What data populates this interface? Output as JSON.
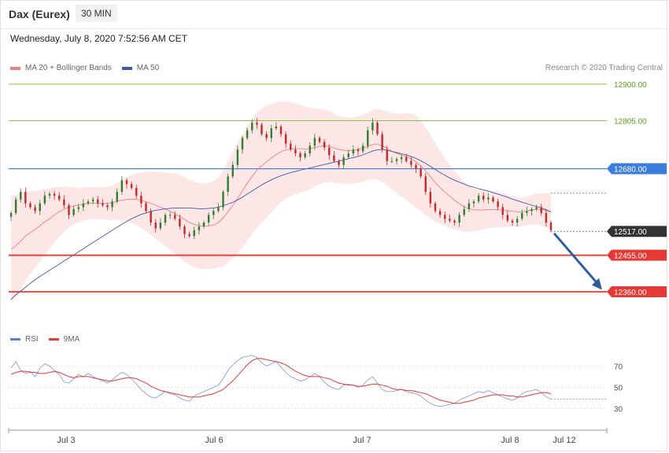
{
  "header": {
    "title": "Dax (Eurex)",
    "timeframe": "30 MIN",
    "datetime": "Wednesday, July 8, 2020 7:52:56 AM CET"
  },
  "legend": {
    "ma20_label": "MA 20 + Bollinger Bands",
    "ma50_label": "MA 50",
    "credit": "Research © 2020 Trading Central"
  },
  "rsi_legend": {
    "rsi_label": "RSI",
    "ma_label": "9MA"
  },
  "colors": {
    "ma20": "#f08080",
    "bands_fill": "#fde2e2",
    "ma50": "#3f5aa8",
    "candle_up": "#2e7d32",
    "candle_down": "#c62828",
    "resistance": "#8bc34a",
    "pivot": "#3b7ddd",
    "support": "#e53935",
    "current": "#333333",
    "rsi": "#7b96d6",
    "rsi_ma": "#e53935",
    "arrow": "#2d5f9e"
  },
  "chart_data": {
    "type": "candlestick",
    "xlabels": [
      "Jul 3",
      "Jul 6",
      "Jul 7",
      "Jul 8",
      "Jul 12"
    ],
    "ylim": [
      12330,
      12920
    ],
    "levels": [
      {
        "label": "12900.00",
        "value": 12900.0,
        "kind": "resistance"
      },
      {
        "label": "12805.00",
        "value": 12805.0,
        "kind": "resistance"
      },
      {
        "label": "12680.00",
        "value": 12680.0,
        "kind": "pivot"
      },
      {
        "label": "12517.00",
        "value": 12517.0,
        "kind": "current"
      },
      {
        "label": "12455.00",
        "value": 12455.0,
        "kind": "support"
      },
      {
        "label": "12360.00",
        "value": 12360.0,
        "kind": "support"
      }
    ],
    "rsi_ticks": [
      70,
      50,
      30
    ],
    "rsi_ylim": [
      15,
      85
    ],
    "close": [
      12565,
      12600,
      12620,
      12590,
      12580,
      12570,
      12590,
      12610,
      12615,
      12610,
      12600,
      12585,
      12560,
      12575,
      12580,
      12590,
      12595,
      12600,
      12590,
      12585,
      12580,
      12595,
      12620,
      12650,
      12640,
      12630,
      12610,
      12590,
      12570,
      12540,
      12525,
      12540,
      12560,
      12560,
      12550,
      12530,
      12510,
      12505,
      12520,
      12530,
      12540,
      12560,
      12570,
      12580,
      12620,
      12660,
      12690,
      12730,
      12760,
      12780,
      12800,
      12795,
      12770,
      12760,
      12785,
      12790,
      12770,
      12745,
      12730,
      12720,
      12710,
      12720,
      12740,
      12760,
      12750,
      12735,
      12715,
      12700,
      12690,
      12710,
      12720,
      12730,
      12725,
      12740,
      12780,
      12800,
      12770,
      12730,
      12700,
      12700,
      12705,
      12710,
      12700,
      12690,
      12680,
      12660,
      12620,
      12590,
      12570,
      12560,
      12550,
      12545,
      12540,
      12560,
      12575,
      12590,
      12595,
      12610,
      12600,
      12605,
      12595,
      12580,
      12560,
      12545,
      12540,
      12550,
      12565,
      12570,
      12575,
      12580,
      12565,
      12540,
      12520
    ],
    "ma20": [
      12470,
      12480,
      12492,
      12505,
      12514,
      12522,
      12532,
      12542,
      12550,
      12560,
      12568,
      12575,
      12580,
      12583,
      12585,
      12588,
      12590,
      12591,
      12590,
      12590,
      12590,
      12592,
      12595,
      12598,
      12600,
      12601,
      12600,
      12598,
      12594,
      12590,
      12585,
      12580,
      12575,
      12569,
      12563,
      12556,
      12548,
      12540,
      12535,
      12532,
      12530,
      12531,
      12534,
      12540,
      12552,
      12568,
      12585,
      12603,
      12622,
      12642,
      12660,
      12676,
      12688,
      12698,
      12708,
      12717,
      12724,
      12729,
      12731,
      12732,
      12732,
      12731,
      12732,
      12735,
      12738,
      12740,
      12738,
      12734,
      12730,
      12728,
      12727,
      12728,
      12730,
      12733,
      12738,
      12743,
      12744,
      12740,
      12733,
      12726,
      12720,
      12716,
      12712,
      12706,
      12698,
      12688,
      12674,
      12659,
      12644,
      12631,
      12619,
      12609,
      12598,
      12589,
      12581,
      12576,
      12573,
      12573,
      12573,
      12574,
      12574,
      12574,
      12572,
      12571,
      12569,
      12568,
      12568,
      12570,
      12573,
      12575,
      12574,
      12572,
      12568
    ],
    "bb_width": [
      140,
      132,
      124,
      116,
      108,
      100,
      93,
      86,
      79,
      72,
      65,
      59,
      53,
      48,
      45,
      43,
      42,
      42,
      42,
      42,
      43,
      45,
      48,
      52,
      57,
      62,
      67,
      72,
      77,
      82,
      87,
      92,
      96,
      100,
      104,
      108,
      110,
      111,
      111,
      111,
      111,
      112,
      114,
      118,
      125,
      132,
      138,
      143,
      147,
      149,
      150,
      150,
      148,
      145,
      141,
      136,
      131,
      126,
      122,
      118,
      114,
      110,
      106,
      102,
      98,
      95,
      92,
      90,
      88,
      87,
      86,
      86,
      86,
      87,
      88,
      90,
      92,
      94,
      96,
      99,
      103,
      108,
      113,
      118,
      120,
      118,
      114,
      109,
      102,
      95,
      88,
      82,
      76,
      70,
      65,
      60,
      56,
      53,
      51,
      49,
      48,
      46,
      44,
      42,
      40,
      38,
      37,
      37,
      38,
      40,
      42,
      44,
      46
    ],
    "ma50": [
      12340,
      12352,
      12362,
      12372,
      12382,
      12391,
      12400,
      12408,
      12416,
      12424,
      12432,
      12440,
      12448,
      12456,
      12464,
      12472,
      12480,
      12488,
      12496,
      12504,
      12512,
      12520,
      12528,
      12536,
      12543,
      12550,
      12556,
      12561,
      12565,
      12569,
      12572,
      12574,
      12576,
      12577,
      12578,
      12578,
      12578,
      12578,
      12577,
      12576,
      12576,
      12577,
      12578,
      12580,
      12584,
      12588,
      12593,
      12599,
      12606,
      12614,
      12622,
      12630,
      12638,
      12645,
      12651,
      12657,
      12662,
      12666,
      12670,
      12673,
      12676,
      12679,
      12682,
      12685,
      12688,
      12691,
      12694,
      12697,
      12700,
      12703,
      12706,
      12709,
      12712,
      12716,
      12721,
      12726,
      12729,
      12730,
      12728,
      12725,
      12722,
      12719,
      12716,
      12712,
      12707,
      12701,
      12694,
      12686,
      12678,
      12670,
      12663,
      12656,
      12650,
      12645,
      12640,
      12635,
      12632,
      12628,
      12625,
      12622,
      12618,
      12614,
      12610,
      12606,
      12601,
      12597,
      12593,
      12589,
      12585,
      12582,
      12578,
      12573,
      12568
    ],
    "rsi": [
      68,
      74,
      66,
      63,
      65,
      60,
      68,
      72,
      70,
      66,
      62,
      55,
      54,
      58,
      62,
      60,
      63,
      60,
      58,
      56,
      54,
      57,
      61,
      64,
      62,
      58,
      53,
      48,
      44,
      41,
      40,
      43,
      46,
      44,
      43,
      40,
      38,
      37,
      42,
      44,
      46,
      48,
      50,
      52,
      58,
      66,
      71,
      75,
      78,
      79,
      80,
      78,
      73,
      70,
      72,
      74,
      69,
      64,
      60,
      58,
      56,
      57,
      60,
      63,
      60,
      55,
      51,
      49,
      48,
      52,
      53,
      52,
      50,
      52,
      57,
      60,
      54,
      48,
      46,
      46,
      47,
      48,
      46,
      45,
      44,
      42,
      38,
      35,
      33,
      32,
      33,
      34,
      35,
      38,
      40,
      42,
      44,
      46,
      45,
      47,
      45,
      43,
      41,
      39,
      38,
      40,
      44,
      46,
      47,
      48,
      45,
      41,
      39
    ],
    "rsi_ma": [
      62,
      64,
      65,
      65,
      64,
      64,
      63,
      63,
      64,
      65,
      64,
      62,
      60,
      59,
      60,
      60,
      60,
      59,
      58,
      57,
      56,
      56,
      57,
      58,
      59,
      59,
      58,
      56,
      54,
      51,
      49,
      47,
      46,
      45,
      44,
      43,
      42,
      41,
      41,
      41,
      42,
      43,
      44,
      46,
      48,
      52,
      56,
      61,
      66,
      71,
      75,
      77,
      77,
      76,
      75,
      74,
      73,
      71,
      68,
      65,
      63,
      61,
      60,
      60,
      60,
      59,
      58,
      56,
      54,
      53,
      52,
      52,
      51,
      51,
      52,
      53,
      53,
      52,
      51,
      49,
      48,
      48,
      47,
      47,
      46,
      45,
      44,
      42,
      40,
      38,
      37,
      36,
      35,
      35,
      36,
      37,
      38,
      40,
      41,
      42,
      43,
      43,
      43,
      42,
      42,
      41,
      41,
      42,
      43,
      44,
      45,
      45,
      44
    ]
  }
}
